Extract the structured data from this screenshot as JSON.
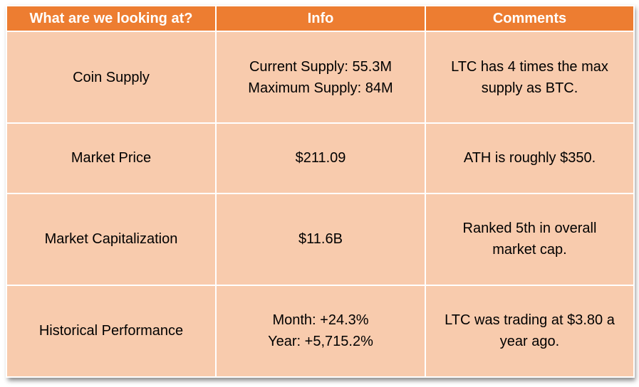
{
  "header": {
    "col1": "What are we looking at?",
    "col2": "Info",
    "col3": "Comments"
  },
  "rows": [
    {
      "label": "Coin Supply",
      "info": [
        "Current Supply: 55.3M",
        "Maximum Supply: 84M"
      ],
      "comment": [
        "LTC has 4 times the max",
        "supply as BTC."
      ]
    },
    {
      "label": "Market Price",
      "info": [
        "$211.09"
      ],
      "comment": [
        "ATH is roughly $350."
      ]
    },
    {
      "label": "Market Capitalization",
      "info": [
        "$11.6B"
      ],
      "comment": [
        "Ranked 5th in overall",
        "market cap."
      ]
    },
    {
      "label": "Historical Performance",
      "info": [
        "Month: +24.3%",
        "Year: +5,715.2%"
      ],
      "comment": [
        "LTC was trading at $3.80 a",
        "year ago."
      ]
    }
  ],
  "colors": {
    "header_bg": "#ed7d31",
    "body_bg": "#f8cbad",
    "border": "#ffffff"
  }
}
